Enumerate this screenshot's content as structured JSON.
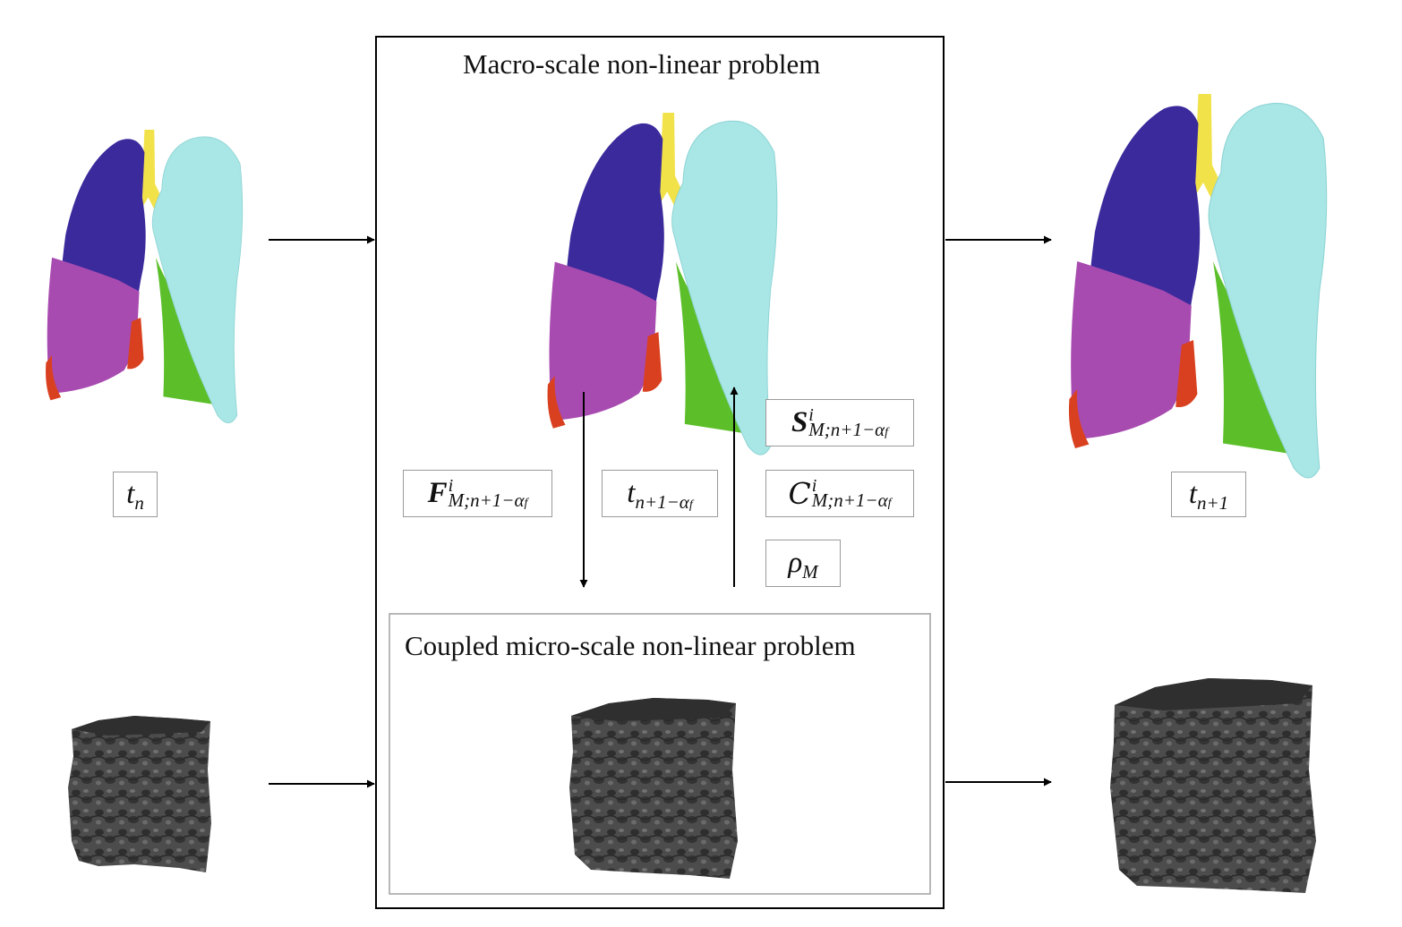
{
  "macro_title": "Macro-scale non-linear problem",
  "micro_title": "Coupled micro-scale non-linear problem",
  "labels": {
    "t_n": {
      "base": "t",
      "sub": "n"
    },
    "t_n1": {
      "base": "t",
      "sub": "n+1"
    },
    "t_mid": {
      "base": "t",
      "sub": "n+1−α",
      "sub_f": "f"
    },
    "F": {
      "base": "F",
      "sup": "i",
      "sub": "M;n+1−α",
      "sub_f": "f"
    },
    "S": {
      "base": "S",
      "sup": "i",
      "sub": "M;n+1−α",
      "sub_f": "f"
    },
    "C": {
      "base": "C",
      "sup": "i",
      "sub": "M;n+1−α",
      "sub_f": "f"
    },
    "rho": {
      "base": "ρ",
      "sub": "M"
    }
  },
  "colors": {
    "upper_right_lobe": "#3a2a9c",
    "middle_lobe": "#a84bb0",
    "lower_lobe_red": "#d9401f",
    "left_lung": "#a9e6e6",
    "left_lower_green": "#5cbf2a",
    "trachea": "#f2e24a",
    "micro_tissue": "#505050"
  }
}
